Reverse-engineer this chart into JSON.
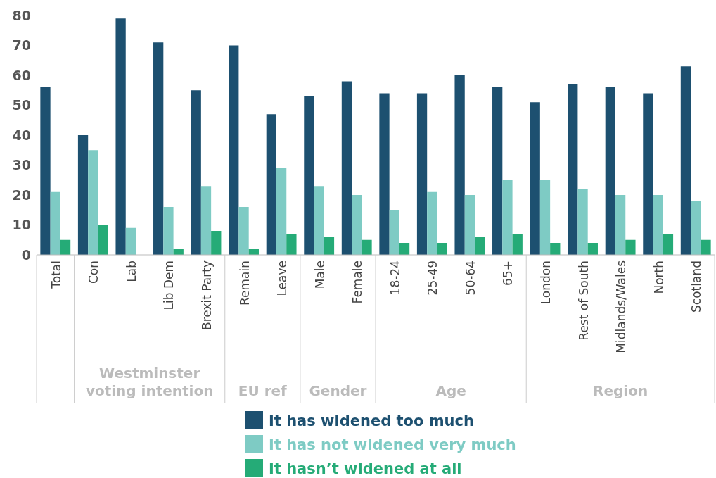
{
  "chart_data": {
    "type": "bar",
    "categories": [
      "Total",
      "Con",
      "Lab",
      "Lib Dem",
      "Brexit Party",
      "Remain",
      "Leave",
      "Male",
      "Female",
      "18-24",
      "25-49",
      "50-64",
      "65+",
      "London",
      "Rest of South",
      "Midlands/Wales",
      "North",
      "Scotland"
    ],
    "series": [
      {
        "name": "It has widened too much",
        "color": "#1d5070",
        "values": [
          56,
          40,
          79,
          71,
          55,
          70,
          47,
          53,
          58,
          54,
          54,
          60,
          56,
          51,
          57,
          56,
          54,
          63
        ]
      },
      {
        "name": "It has not widened very much",
        "color": "#7ecbc4",
        "values": [
          21,
          35,
          9,
          16,
          23,
          16,
          29,
          23,
          20,
          15,
          21,
          20,
          25,
          25,
          22,
          20,
          20,
          18
        ]
      },
      {
        "name": "It hasn’t widened at all",
        "color": "#25ab77",
        "values": [
          5,
          10,
          null,
          2,
          8,
          2,
          7,
          6,
          5,
          4,
          4,
          6,
          7,
          4,
          4,
          5,
          7,
          5
        ]
      }
    ],
    "ylim": [
      0,
      80
    ],
    "yticks": [
      0,
      10,
      20,
      30,
      40,
      50,
      60,
      70,
      80
    ],
    "annotations": [
      "Westminster voting intention",
      "EU ref",
      "Gender",
      "Age",
      "Region"
    ],
    "legend": "bottom"
  }
}
